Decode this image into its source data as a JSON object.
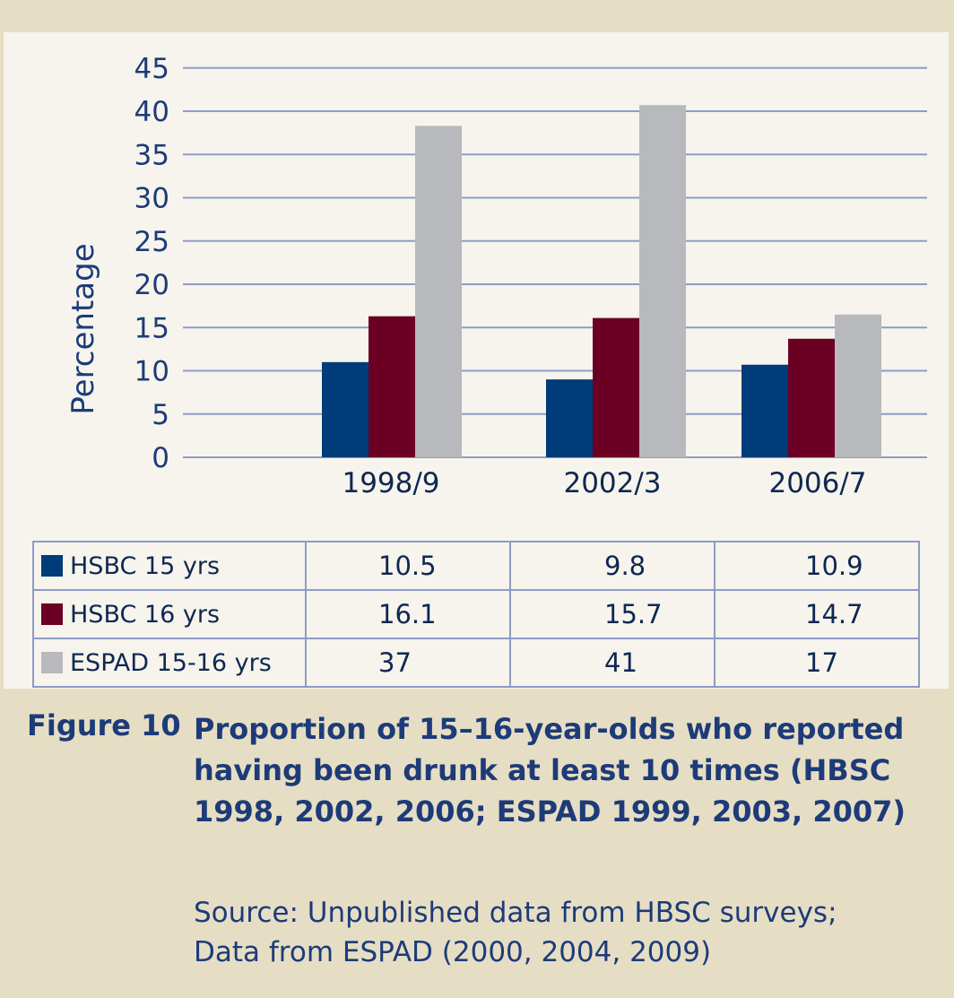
{
  "chart_data": {
    "type": "bar",
    "categories": [
      "1998/9",
      "2002/3",
      "2006/7"
    ],
    "series": [
      {
        "name": "HSBC 15 yrs",
        "color": "#003b7a",
        "values": [
          10.5,
          9.8,
          10.9
        ]
      },
      {
        "name": "HSBC 16 yrs",
        "color": "#6b0024",
        "values": [
          16.1,
          15.7,
          14.7
        ]
      },
      {
        "name": "ESPAD 15-16 yrs",
        "color": "#b8b9bc",
        "values": [
          37,
          41,
          17
        ]
      }
    ],
    "bar_heights_plotted": [
      [
        11,
        9,
        10.7
      ],
      [
        16.3,
        16.1,
        13.7
      ],
      [
        38.3,
        40.7,
        16.5
      ]
    ],
    "ylabel": "Percentage",
    "xlabel": "",
    "ylim": [
      0,
      45
    ],
    "yticks": [
      0,
      5,
      10,
      15,
      20,
      25,
      30,
      35,
      40,
      45
    ],
    "grid": true,
    "legend": "table-below"
  },
  "table": {
    "rows": [
      {
        "label": "HSBC 15 yrs",
        "color": "#003b7a",
        "values": [
          "10.5",
          "9.8",
          "10.9"
        ]
      },
      {
        "label": "HSBC 16 yrs",
        "color": "#6b0024",
        "values": [
          "16.1",
          "15.7",
          "14.7"
        ]
      },
      {
        "label": "ESPAD 15-16 yrs",
        "color": "#b8b9bc",
        "values": [
          "37",
          "41",
          "17"
        ]
      }
    ]
  },
  "caption": {
    "label": "Figure 10",
    "title": "Proportion of 15–16-year-olds who reported having been drunk at least 10 times (HBSC 1998, 2002, 2006; ESPAD 1999, 2003, 2007)",
    "source": "Source: Unpublished data from HBSC surveys; Data from ESPAD (2000, 2004, 2009)"
  },
  "colors": {
    "text": "#0f2752",
    "caption": "#1d3b79",
    "grid": "#8e9bc6",
    "background": "#e6dec4",
    "panel": "#f6f4ec"
  }
}
